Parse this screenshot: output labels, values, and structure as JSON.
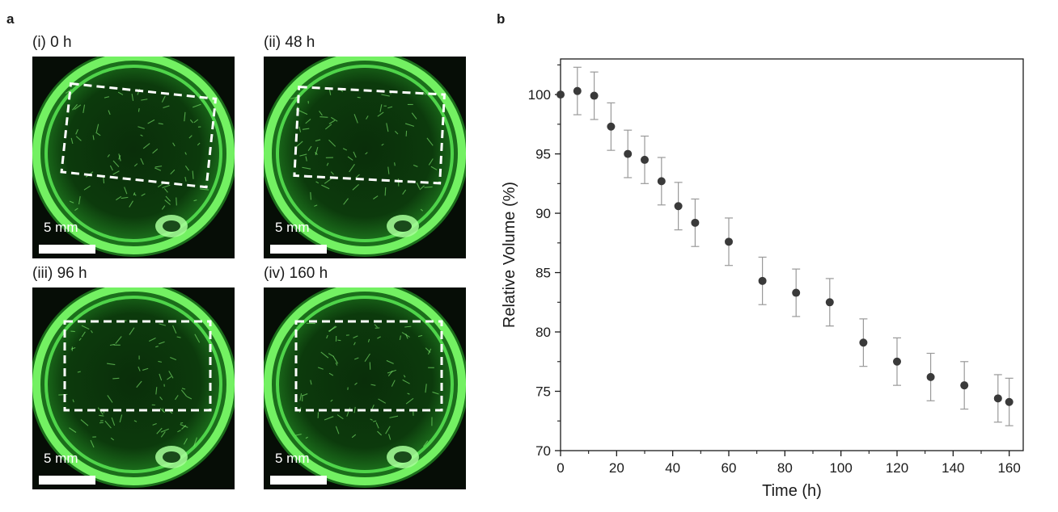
{
  "figure": {
    "panel_a_label": "a",
    "panel_b_label": "b",
    "photos": [
      {
        "label": "(i) 0 h",
        "scale_label": "5 mm",
        "tilt_deg": 6
      },
      {
        "label": "(ii) 48 h",
        "scale_label": "5 mm",
        "tilt_deg": 3
      },
      {
        "label": "(iii) 96 h",
        "scale_label": "5 mm",
        "tilt_deg": 0
      },
      {
        "label": "(iv) 160 h",
        "scale_label": "5 mm",
        "tilt_deg": 0
      }
    ]
  },
  "chart_data": {
    "type": "scatter",
    "xlabel": "Time (h)",
    "ylabel": "Relative Volume (%)",
    "xlim": [
      0,
      165
    ],
    "ylim": [
      70,
      103
    ],
    "xticks": [
      0,
      20,
      40,
      60,
      80,
      100,
      120,
      140,
      160
    ],
    "yticks": [
      70,
      75,
      80,
      85,
      90,
      95,
      100
    ],
    "grid": false,
    "marker_color": "#3a3a3a",
    "errorbar_color": "#9a9a9a",
    "points": [
      {
        "x": 0,
        "y": 100.0,
        "err": 0
      },
      {
        "x": 6,
        "y": 100.3,
        "err": 2.0
      },
      {
        "x": 12,
        "y": 99.9,
        "err": 2.0
      },
      {
        "x": 18,
        "y": 97.3,
        "err": 2.0
      },
      {
        "x": 24,
        "y": 95.0,
        "err": 2.0
      },
      {
        "x": 30,
        "y": 94.5,
        "err": 2.0
      },
      {
        "x": 36,
        "y": 92.7,
        "err": 2.0
      },
      {
        "x": 42,
        "y": 90.6,
        "err": 2.0
      },
      {
        "x": 48,
        "y": 89.2,
        "err": 2.0
      },
      {
        "x": 60,
        "y": 87.6,
        "err": 2.0
      },
      {
        "x": 72,
        "y": 84.3,
        "err": 2.0
      },
      {
        "x": 84,
        "y": 83.3,
        "err": 2.0
      },
      {
        "x": 96,
        "y": 82.5,
        "err": 2.0
      },
      {
        "x": 108,
        "y": 79.1,
        "err": 2.0
      },
      {
        "x": 120,
        "y": 77.5,
        "err": 2.0
      },
      {
        "x": 132,
        "y": 76.2,
        "err": 2.0
      },
      {
        "x": 144,
        "y": 75.5,
        "err": 2.0
      },
      {
        "x": 156,
        "y": 74.4,
        "err": 2.0
      },
      {
        "x": 160,
        "y": 74.1,
        "err": 2.0
      }
    ]
  }
}
